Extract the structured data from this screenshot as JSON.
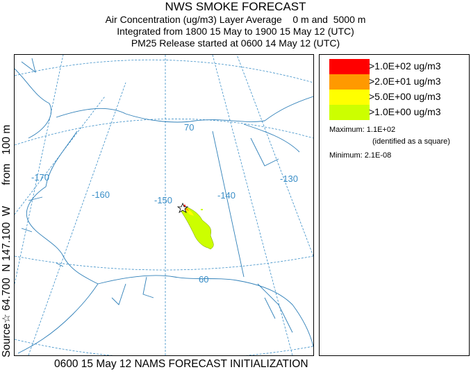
{
  "title": {
    "line1": "NWS SMOKE FORECAST",
    "line2": "Air Concentration (ug/m3) Layer Average    0 m and  5000 m",
    "line3": "Integrated from 1800 15 May to 1900 15 May 12 (UTC)",
    "line4": "PM25 Release started at 0600 14 May 12 (UTC)"
  },
  "side_label": "Source☆ 64.700  N 147.100  W       from   100 m",
  "map": {
    "lat_labels": [
      "70",
      "60"
    ],
    "lon_labels": [
      "-170",
      "-160",
      "-150",
      "-140",
      "-130"
    ],
    "graticule_color": "#3a8ec7",
    "coast_color": "#2e7fb8",
    "source_marker": "star-icon"
  },
  "legend": {
    "entries": [
      {
        "label": ">1.0E+02 ug/m3",
        "color": "#ff0000"
      },
      {
        "label": ">2.0E+01 ug/m3",
        "color": "#ff9900"
      },
      {
        "label": ">5.0E+00 ug/m3",
        "color": "#ffff00"
      },
      {
        "label": ">1.0E+00 ug/m3",
        "color": "#ccff00"
      }
    ],
    "maximum": "Maximum: 1.1E+02",
    "maximum_note": "(identified as a square)",
    "minimum": "Minimum: 2.1E-08"
  },
  "footer": "0600 15 May 12 NAMS FORECAST INITIALIZATION"
}
